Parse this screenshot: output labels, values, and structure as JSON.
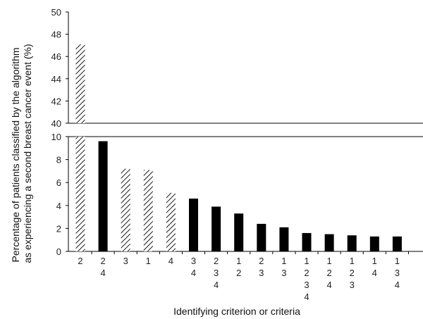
{
  "chart_data": {
    "type": "bar",
    "broken_axis": true,
    "ylabel_lines": [
      "Percentage of patients classified by the algorithm",
      "as experiencing a second breast cancer event (%)"
    ],
    "xlabel": "Identifying criterion or criteria",
    "upper_ylim": [
      40,
      50
    ],
    "upper_yticks": [
      40,
      42,
      44,
      46,
      48,
      50
    ],
    "lower_ylim": [
      0,
      10
    ],
    "lower_yticks": [
      0,
      2,
      4,
      6,
      8,
      10
    ],
    "grid": false,
    "legend": "none",
    "categories": [
      [
        "2"
      ],
      [
        "2",
        "4"
      ],
      [
        "3"
      ],
      [
        "1"
      ],
      [
        "4"
      ],
      [
        "3",
        "4"
      ],
      [
        "2",
        "3",
        "4"
      ],
      [
        "1",
        "2"
      ],
      [
        "2",
        "3"
      ],
      [
        "1",
        "3"
      ],
      [
        "1",
        "2",
        "3",
        "4"
      ],
      [
        "1",
        "2",
        "4"
      ],
      [
        "1",
        "2",
        "3"
      ],
      [
        "1",
        "4"
      ],
      [
        "1",
        "3",
        "4"
      ]
    ],
    "values": [
      47.1,
      9.6,
      7.2,
      7.1,
      5.1,
      4.6,
      3.9,
      3.3,
      2.4,
      2.1,
      1.6,
      1.5,
      1.4,
      1.3,
      1.3
    ],
    "fill": [
      "hatched",
      "solid",
      "hatched",
      "hatched",
      "hatched",
      "solid",
      "solid",
      "solid",
      "solid",
      "solid",
      "solid",
      "solid",
      "solid",
      "solid",
      "solid"
    ],
    "colors": {
      "solid": "#000000",
      "hatched_line": "#000000",
      "axis": "#000000"
    }
  }
}
